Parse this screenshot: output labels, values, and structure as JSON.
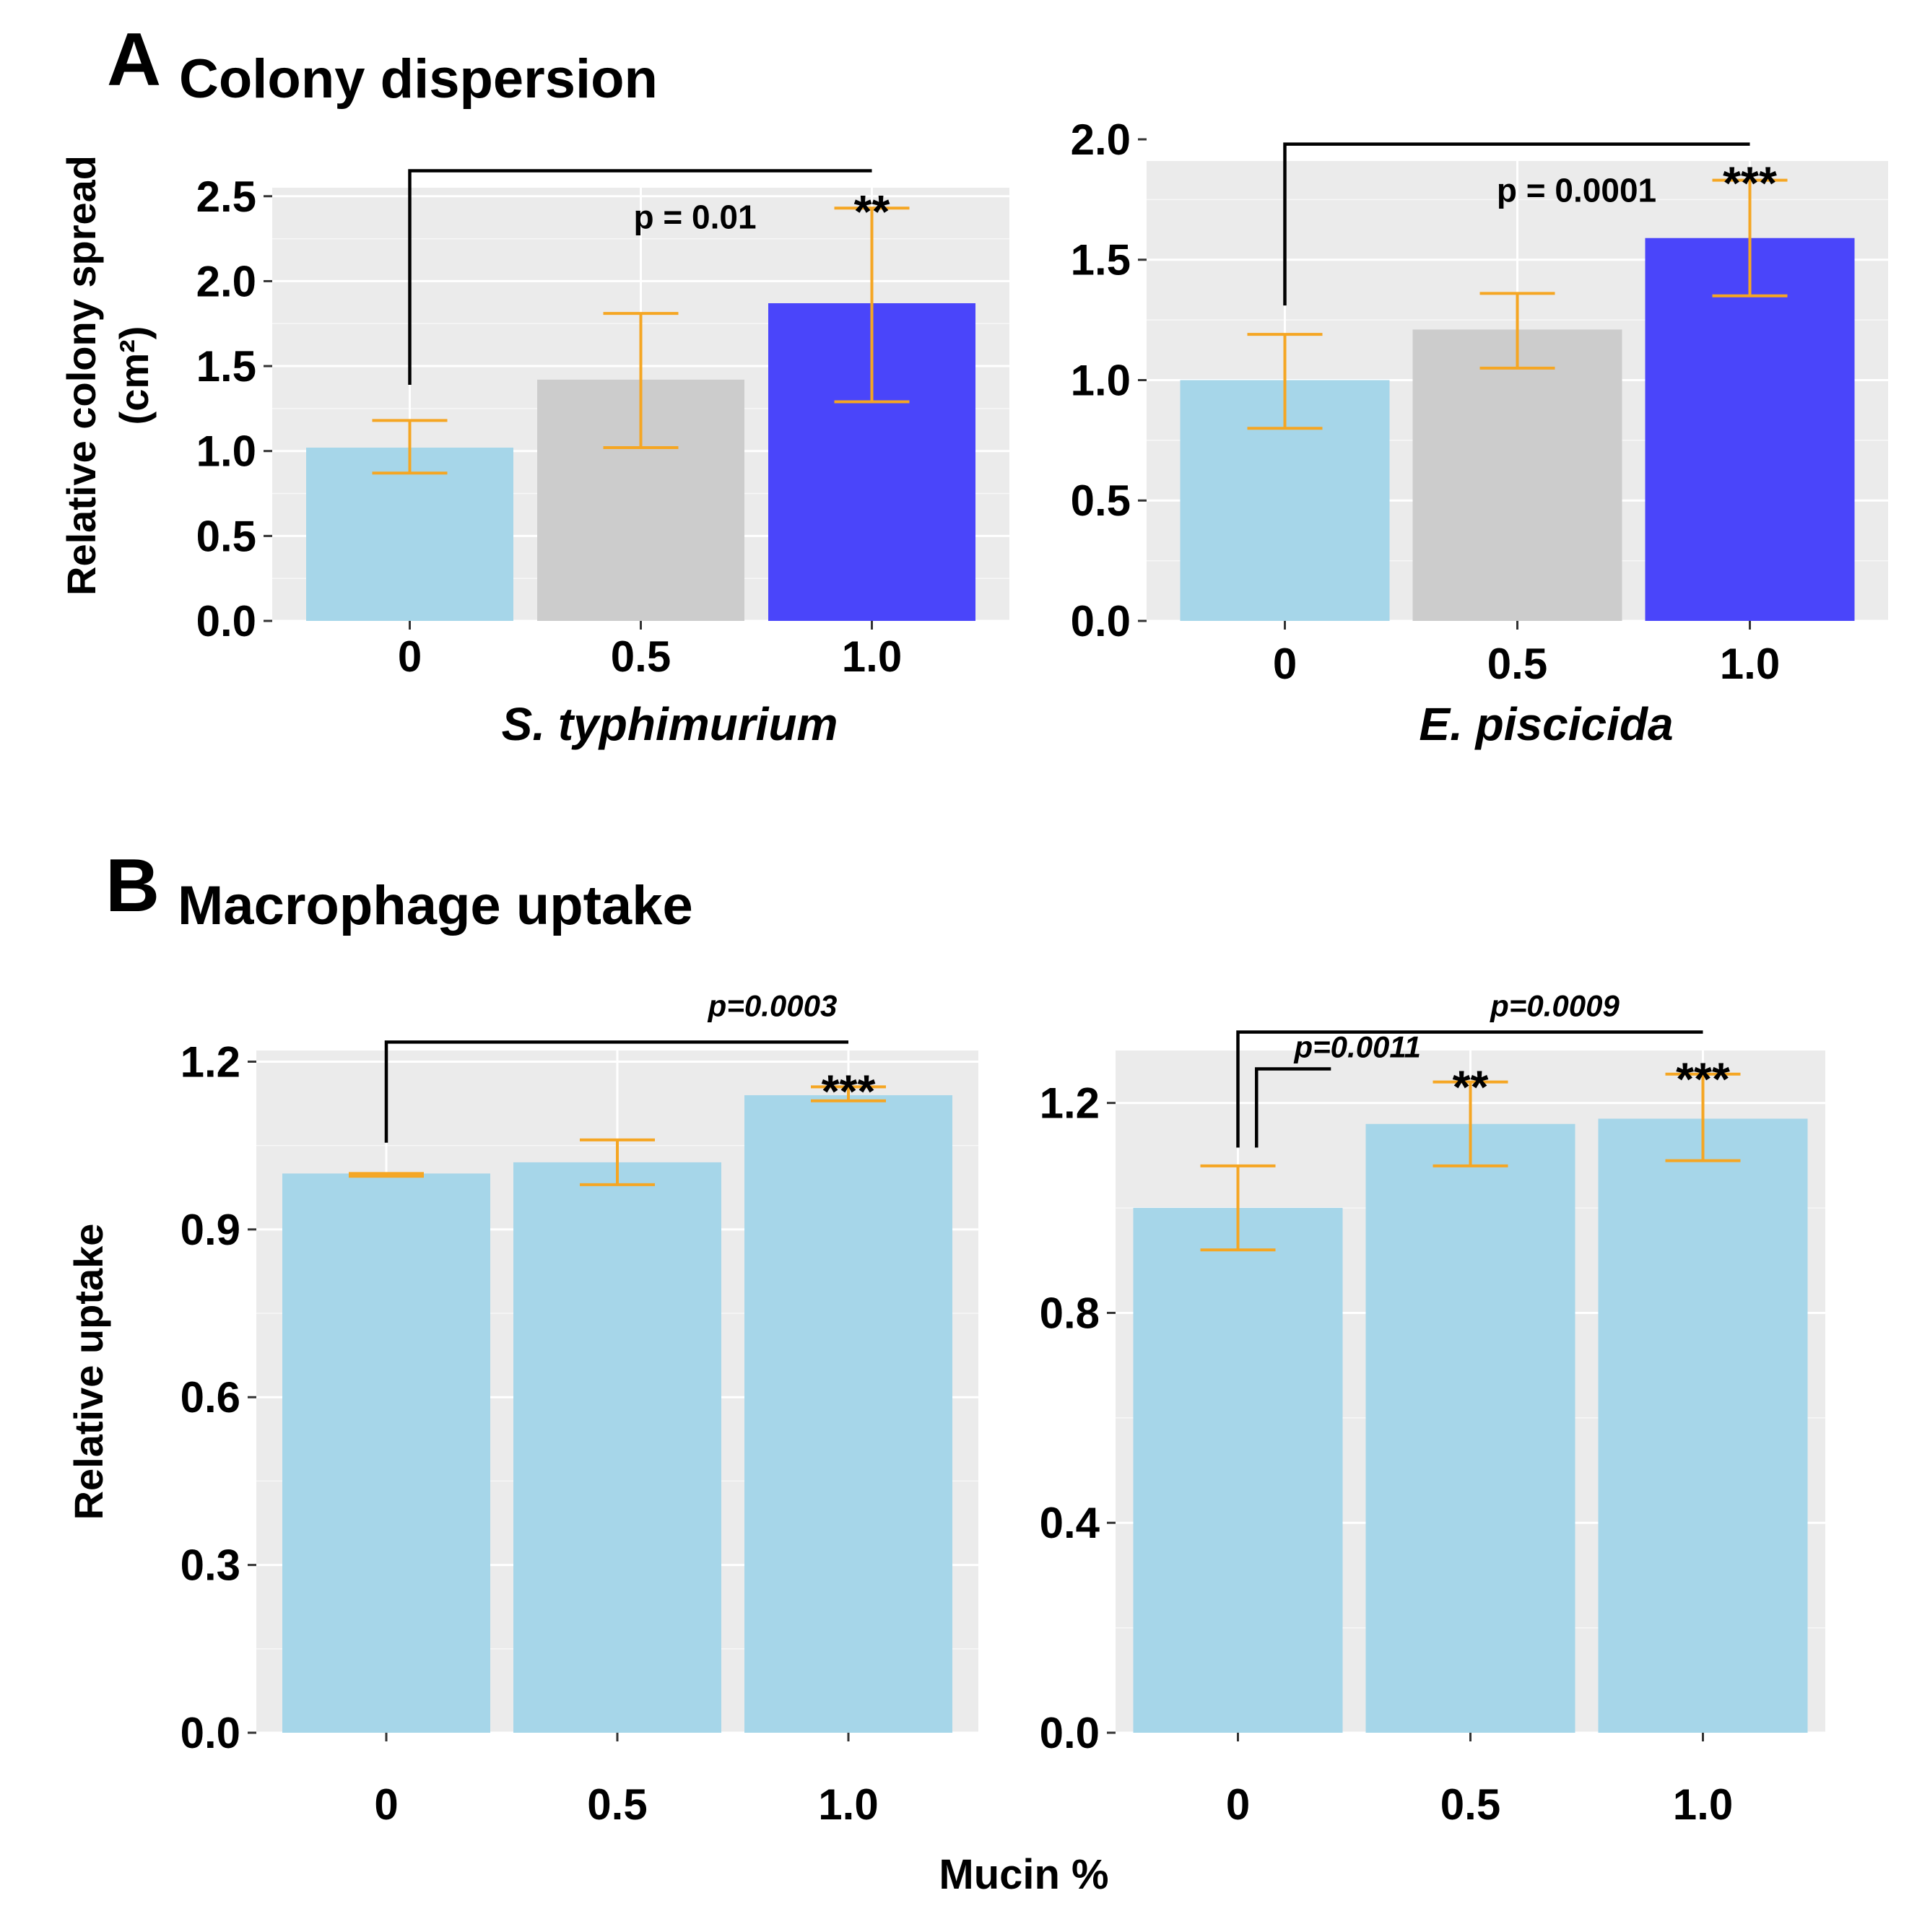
{
  "panels": [
    {
      "letter": "A",
      "title": "Colony dispersion"
    },
    {
      "letter": "B",
      "title": "Macrophage uptake"
    }
  ],
  "common_xlabel": "Mucin %",
  "colors": {
    "panel_bg": "#ebebeb",
    "grid": "#ffffff",
    "light_blue": "#a6d6e9",
    "grey": "#cccccc",
    "blue": "#4a45fa",
    "error_bar": "#f5a623",
    "bracket": "#000000"
  },
  "chart_data": [
    {
      "id": "A1",
      "type": "bar",
      "categories": [
        "0",
        "0.5",
        "1.0"
      ],
      "values": [
        1.02,
        1.42,
        1.87
      ],
      "err_low": [
        0.87,
        1.02,
        1.29
      ],
      "err_high": [
        1.18,
        1.81,
        2.43
      ],
      "bar_colors": [
        "light_blue",
        "grey",
        "blue"
      ],
      "ylim": [
        0,
        2.55
      ],
      "yticks": [
        "0.0",
        "0.5",
        "1.0",
        "1.5",
        "2.0",
        "2.5"
      ],
      "ytick_values": [
        0,
        0.5,
        1.0,
        1.5,
        2.0,
        2.5
      ],
      "xlabel": "S. typhimurium",
      "ylabel": "Relative colony spread",
      "ylabel_unit": "(cm²)",
      "annotations": [
        {
          "from": 0,
          "to": 2,
          "level": 2.65,
          "drop_to": 1.39,
          "text": "p = 0.01",
          "stars": "**",
          "stars_y": 2.47
        }
      ]
    },
    {
      "id": "A2",
      "type": "bar",
      "categories": [
        "0",
        "0.5",
        "1.0"
      ],
      "values": [
        1.0,
        1.21,
        1.59
      ],
      "err_low": [
        0.8,
        1.05,
        1.35
      ],
      "err_high": [
        1.19,
        1.36,
        1.83
      ],
      "bar_colors": [
        "light_blue",
        "grey",
        "blue"
      ],
      "ylim": [
        0,
        1.91
      ],
      "yticks": [
        "0.0",
        "0.5",
        "1.0",
        "1.5",
        "2.0"
      ],
      "ytick_values": [
        0,
        0.5,
        1.0,
        1.5,
        2.0
      ],
      "xlabel": "E. piscicida",
      "annotations": [
        {
          "from": 0,
          "to": 2,
          "level": 1.98,
          "drop_to": 1.31,
          "text": "p = 0.0001",
          "stars": "***",
          "stars_y": 1.86
        }
      ]
    },
    {
      "id": "B1",
      "type": "bar",
      "categories": [
        "0",
        "0.5",
        "1.0"
      ],
      "values": [
        1.0,
        1.02,
        1.14
      ],
      "err_low": [
        0.995,
        0.98,
        1.13
      ],
      "err_high": [
        1.0,
        1.06,
        1.155
      ],
      "bar_colors": [
        "light_blue",
        "light_blue",
        "light_blue"
      ],
      "ylim": [
        0,
        1.22
      ],
      "yticks": [
        "0.0",
        "0.3",
        "0.6",
        "0.9",
        "1.2"
      ],
      "ytick_values": [
        0,
        0.3,
        0.6,
        0.9,
        1.2
      ],
      "ylabel": "Relative uptake",
      "annotations": [
        {
          "from": 0,
          "to": 2,
          "level": 1.235,
          "drop_to": 1.055,
          "text": "p=0.0003",
          "stars": "***",
          "stars_y": 1.165
        }
      ]
    },
    {
      "id": "B2",
      "type": "bar",
      "categories": [
        "0",
        "0.5",
        "1.0"
      ],
      "values": [
        1.0,
        1.16,
        1.17
      ],
      "err_low": [
        0.92,
        1.08,
        1.09
      ],
      "err_high": [
        1.08,
        1.24,
        1.255
      ],
      "bar_colors": [
        "light_blue",
        "light_blue",
        "light_blue"
      ],
      "ylim": [
        0,
        1.3
      ],
      "yticks": [
        "0.0",
        "0.4",
        "0.8",
        "1.2"
      ],
      "ytick_values": [
        0,
        0.4,
        0.8,
        1.2
      ],
      "annotations": [
        {
          "from": 0,
          "to": 2,
          "level": 1.335,
          "drop_to": 1.115,
          "text": "p=0.0009",
          "stars": "***",
          "stars_y": 1.265
        },
        {
          "from": 0.08,
          "to": 0.4,
          "level": 1.265,
          "drop_to": 1.115,
          "text": "p=0.0011",
          "stars": "**",
          "stars_y": 1.25,
          "stars_at": 1
        }
      ]
    }
  ]
}
